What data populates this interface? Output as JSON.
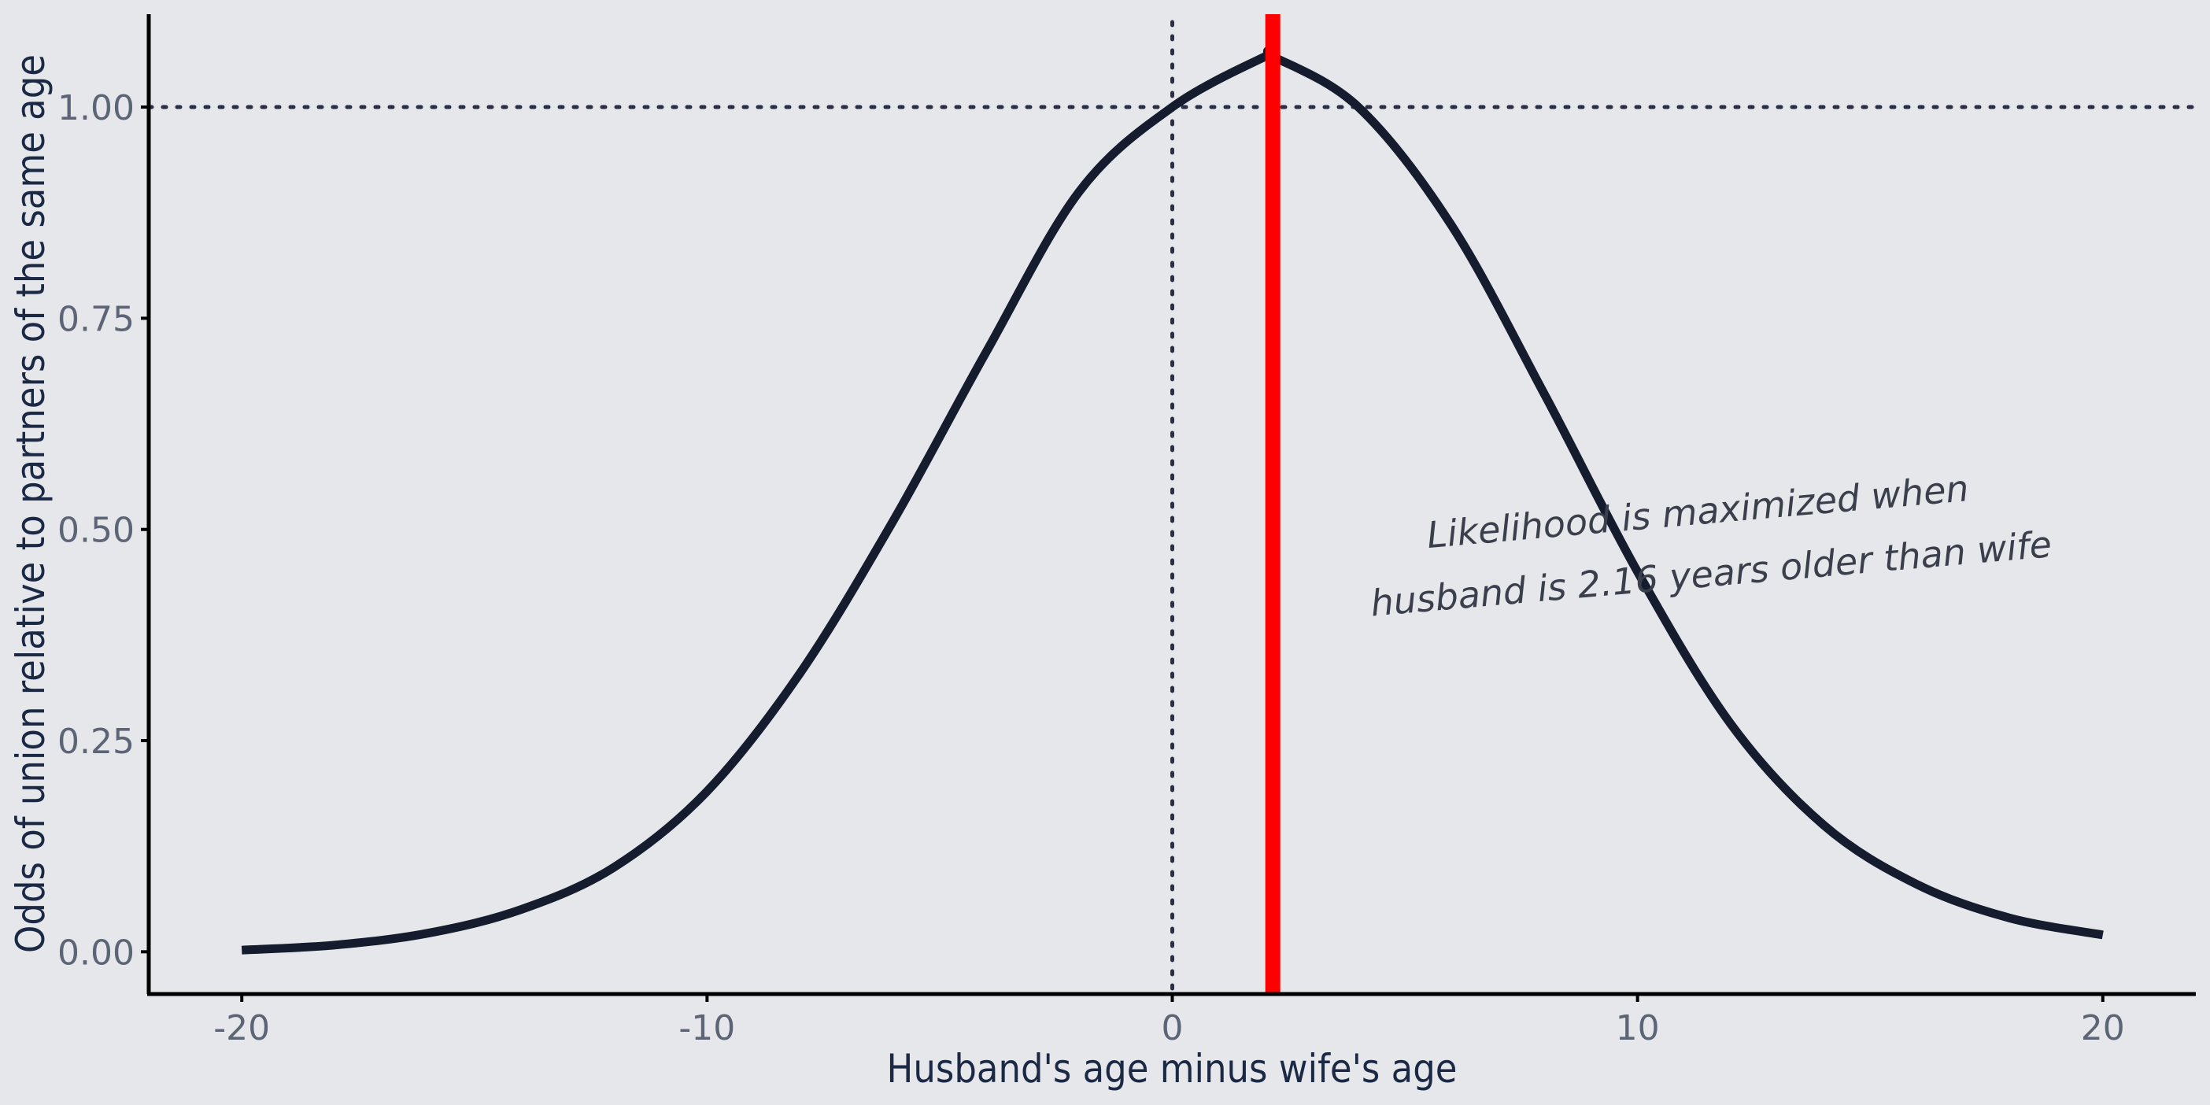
{
  "chart_data": {
    "type": "line",
    "xlabel": "Husband's age minus wife's age",
    "ylabel": "Odds of union relative to partners of the same age",
    "xlim": [
      -22,
      22
    ],
    "ylim": [
      -0.05,
      1.11
    ],
    "x_ticks": [
      -20,
      -10,
      0,
      10,
      20
    ],
    "x_tick_labels": [
      "-20",
      "-10",
      "0",
      "10",
      "20"
    ],
    "y_ticks": [
      0,
      0.25,
      0.5,
      0.75,
      1.0
    ],
    "y_tick_labels": [
      "0.00",
      "0.25",
      "0.50",
      "0.75",
      "1.00"
    ],
    "grid": false,
    "series": [
      {
        "x": [
          -20,
          -18,
          -16,
          -14,
          -12,
          -10,
          -8,
          -6,
          -4,
          -2,
          0,
          2,
          2.16,
          4,
          6,
          8,
          10,
          12,
          14,
          16,
          18,
          20
        ],
        "values": [
          0.002,
          0.008,
          0.022,
          0.05,
          0.1,
          0.19,
          0.33,
          0.51,
          0.71,
          0.9,
          1.0,
          1.06,
          1.06,
          1.0,
          0.86,
          0.66,
          0.45,
          0.27,
          0.15,
          0.08,
          0.04,
          0.02
        ]
      }
    ],
    "reference_lines": {
      "vertical_dotted_x": 0,
      "horizontal_dotted_y": 1.0,
      "vertical_highlight_x": 2.16
    },
    "annotation": {
      "line1": "Likelihood is maximized when",
      "line2": "husband is 2.16 years older than wife",
      "x": 11.5,
      "y": 0.5
    },
    "colors": {
      "background": "#e5e7eb",
      "curve": "#141c2e",
      "highlight": "#ff0000",
      "reference": "#2b2f45",
      "axis": "#000000"
    }
  }
}
